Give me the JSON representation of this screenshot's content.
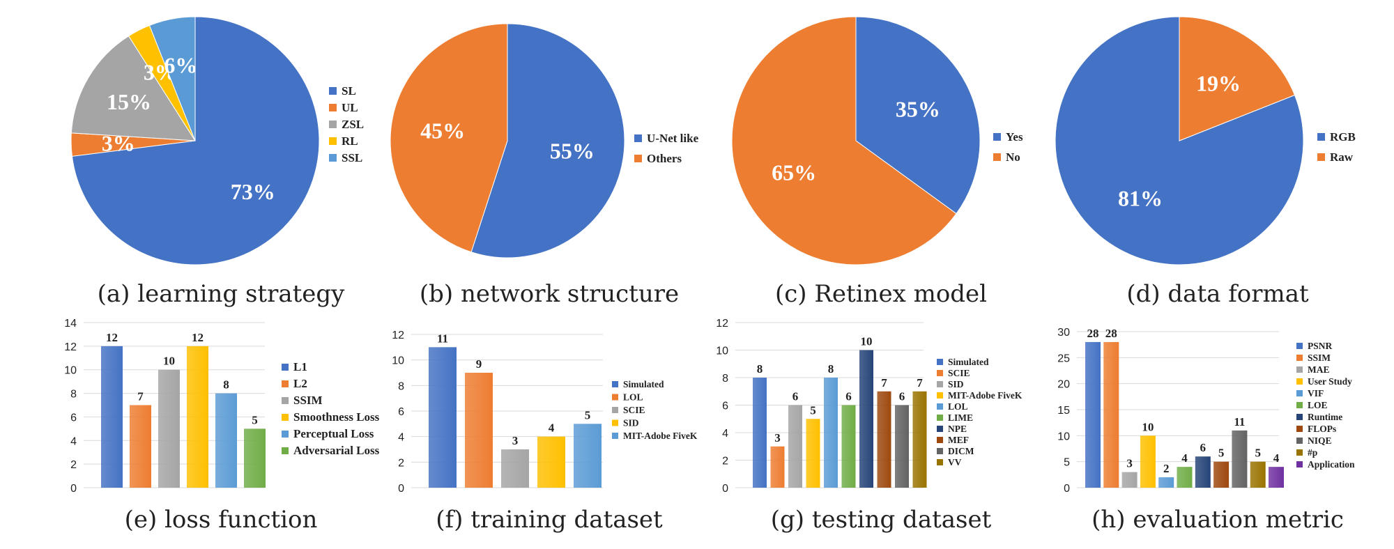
{
  "chart_data": [
    {
      "id": "a",
      "type": "pie",
      "title": "(a) learning strategy",
      "slices": [
        {
          "label": "SL",
          "value": 73,
          "text": "73%",
          "color": "#4472C4"
        },
        {
          "label": "UL",
          "value": 3,
          "text": "3%",
          "color": "#ED7D31"
        },
        {
          "label": "ZSL",
          "value": 15,
          "text": "15%",
          "color": "#A5A5A5"
        },
        {
          "label": "RL",
          "value": 3,
          "text": "3%",
          "color": "#FFC000"
        },
        {
          "label": "SSL",
          "value": 6,
          "text": "6%",
          "color": "#5B9BD5"
        }
      ]
    },
    {
      "id": "b",
      "type": "pie",
      "title": "(b) network structure",
      "slices": [
        {
          "label": "U-Net like",
          "value": 55,
          "text": "55%",
          "color": "#4472C4"
        },
        {
          "label": "Others",
          "value": 45,
          "text": "45%",
          "color": "#ED7D31"
        }
      ]
    },
    {
      "id": "c",
      "type": "pie",
      "title": "(c) Retinex model",
      "slices": [
        {
          "label": "Yes",
          "value": 35,
          "text": "35%",
          "color": "#4472C4"
        },
        {
          "label": "No",
          "value": 65,
          "text": "65%",
          "color": "#ED7D31"
        }
      ]
    },
    {
      "id": "d",
      "type": "pie",
      "title": "(d) data format",
      "slices": [
        {
          "label": "RGB",
          "value": 81,
          "text": "81%",
          "color": "#4472C4"
        },
        {
          "label": "Raw",
          "value": 19,
          "text": "19%",
          "color": "#ED7D31"
        }
      ]
    },
    {
      "id": "e",
      "type": "bar",
      "title": "(e) loss function",
      "ylim": [
        0,
        14
      ],
      "yticks": [
        "0",
        "2",
        "4",
        "6",
        "8",
        "10",
        "12",
        "14"
      ],
      "categories": [
        "L1",
        "L2",
        "SSIM",
        "Smoothness Loss",
        "Perceptual Loss",
        "Adversarial Loss"
      ],
      "values": [
        12,
        7,
        10,
        12,
        8,
        5
      ],
      "colors": [
        "#4472C4",
        "#ED7D31",
        "#A5A5A5",
        "#FFC000",
        "#5B9BD5",
        "#70AD47"
      ]
    },
    {
      "id": "f",
      "type": "bar",
      "title": "(f) training dataset",
      "ylim": [
        0,
        12
      ],
      "yticks": [
        "0",
        "2",
        "4",
        "6",
        "8",
        "10",
        "12"
      ],
      "categories": [
        "Simulated",
        "LOL",
        "SCIE",
        "SID",
        "MIT-Adobe FiveK"
      ],
      "values": [
        11,
        9,
        3,
        4,
        5
      ],
      "colors": [
        "#4472C4",
        "#ED7D31",
        "#A5A5A5",
        "#FFC000",
        "#5B9BD5"
      ]
    },
    {
      "id": "g",
      "type": "bar",
      "title": "(g) testing dataset",
      "ylim": [
        0,
        12
      ],
      "yticks": [
        "0",
        "2",
        "4",
        "6",
        "8",
        "10",
        "12"
      ],
      "categories": [
        "Simulated",
        "SCIE",
        "SID",
        "MIT-Adobe FiveK",
        "LOL",
        "LIME",
        "NPE",
        "MEF",
        "DICM",
        "VV"
      ],
      "values": [
        8,
        3,
        6,
        5,
        8,
        6,
        10,
        7,
        6,
        7
      ],
      "colors": [
        "#4472C4",
        "#ED7D31",
        "#A5A5A5",
        "#FFC000",
        "#5B9BD5",
        "#70AD47",
        "#264478",
        "#9E480E",
        "#636363",
        "#997300"
      ]
    },
    {
      "id": "h",
      "type": "bar",
      "title": "(h) evaluation metric",
      "ylim": [
        0,
        30
      ],
      "yticks": [
        "0",
        "5",
        "10",
        "15",
        "20",
        "25",
        "30"
      ],
      "categories": [
        "PSNR",
        "SSIM",
        "MAE",
        "User Study",
        "VIF",
        "LOE",
        "Runtime",
        "FLOPs",
        "NIQE",
        "#p",
        "Application"
      ],
      "values": [
        28,
        28,
        3,
        10,
        2,
        4,
        6,
        5,
        11,
        5,
        4
      ],
      "colors": [
        "#4472C4",
        "#ED7D31",
        "#A5A5A5",
        "#FFC000",
        "#5B9BD5",
        "#70AD47",
        "#264478",
        "#9E480E",
        "#636363",
        "#997300",
        "#7030A0"
      ]
    }
  ]
}
